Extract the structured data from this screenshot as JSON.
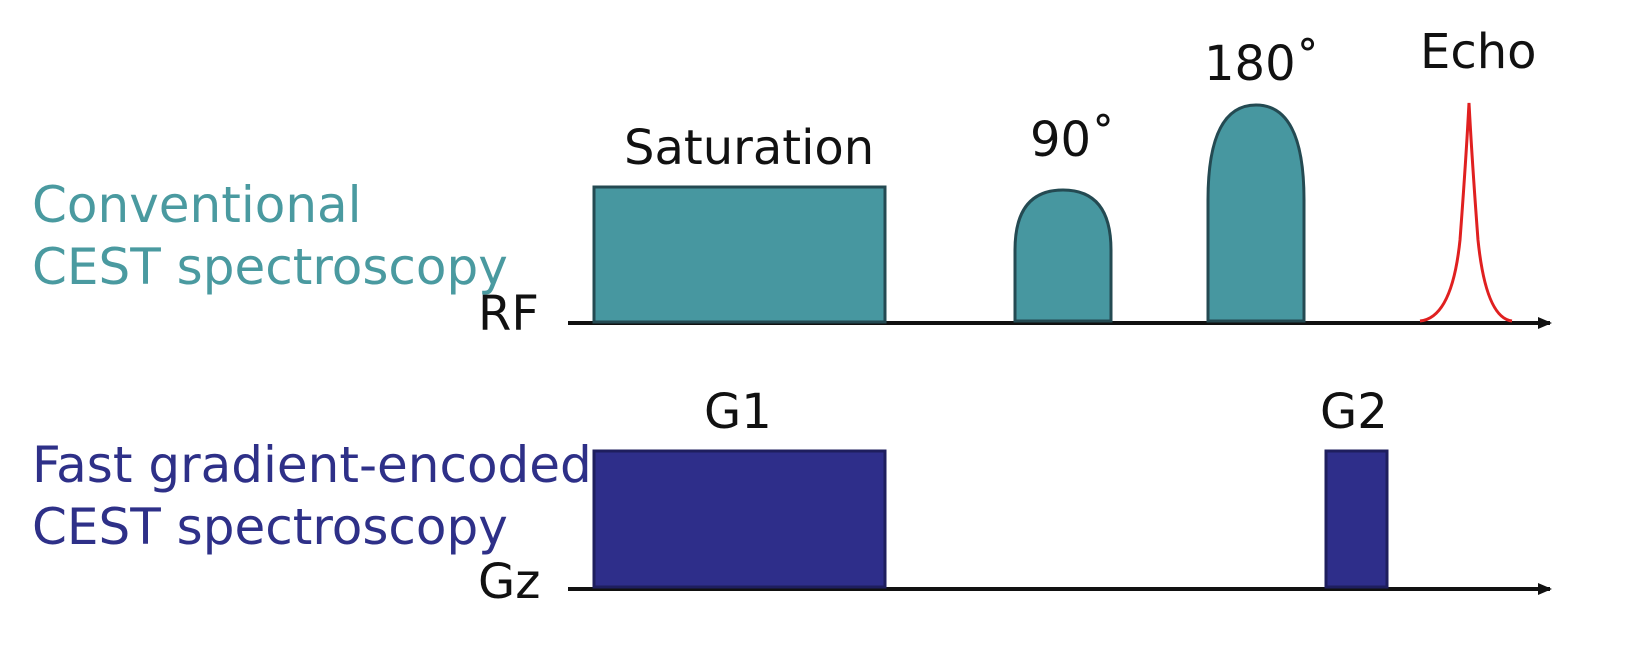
{
  "colors": {
    "rf_pulse_fill": "#4797a0",
    "rf_pulse_stroke": "#244a52",
    "gradient_fill": "#2e2e8a",
    "gradient_stroke": "#1e1e5e",
    "echo": "#e02020",
    "axis": "#111111",
    "conventional_text": "#4a9aa0",
    "fast_text": "#2e3088"
  },
  "sequences": {
    "conventional": {
      "line1": "Conventional",
      "line2": "CEST spectroscopy"
    },
    "fast": {
      "line1": "Fast gradient-encoded",
      "line2": "CEST spectroscopy"
    }
  },
  "axes": {
    "rf": "RF",
    "gz": "Gz"
  },
  "rf_events": {
    "saturation": "Saturation",
    "pulse90": "90˚",
    "pulse180": "180˚",
    "echo": "Echo"
  },
  "gz_events": {
    "g1": "G1",
    "g2": "G2"
  }
}
